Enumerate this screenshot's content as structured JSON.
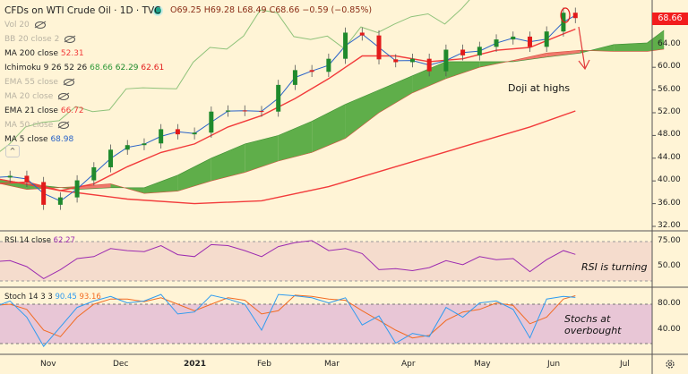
{
  "header": {
    "title": "CFDs on WTI Crude Oil · 1D · TVC",
    "ohlc": "O69.25 H69.28 L68.49 C68.66 −0.59 (−0.85%)"
  },
  "legend": [
    {
      "label": "Vol 20",
      "hidden": true,
      "value": ""
    },
    {
      "label": "BB 20 close 2",
      "hidden": true,
      "value": ""
    },
    {
      "label": "MA 200 close",
      "hidden": false,
      "value": "52.31",
      "color": "#f23b3b"
    },
    {
      "label": "Ichimoku 9 26 52 26",
      "hidden": false,
      "value": "68.66",
      "value2": "62.29",
      "value3": "62.61"
    },
    {
      "label": "EMA 55 close",
      "hidden": true,
      "value": ""
    },
    {
      "label": "MA 20 close",
      "hidden": true,
      "value": ""
    },
    {
      "label": "EMA 21 close",
      "hidden": false,
      "value": "66.72",
      "color": "#f23b3b"
    },
    {
      "label": "MA 50 close",
      "hidden": true,
      "value": ""
    },
    {
      "label": "MA 5 close",
      "hidden": false,
      "value": "68.98",
      "color": "#2962c8"
    }
  ],
  "price_tag": "68.66",
  "rsi": {
    "label": "RSI 14 close",
    "value": "62.27"
  },
  "stoch": {
    "label": "Stoch 14 3 3",
    "k_value": "90.45",
    "d_value": "93.16"
  },
  "annotations": {
    "doji": "Doji at highs",
    "rsi": "RSI is turning",
    "stoch_line1": "Stochs at",
    "stoch_line2": "overbought"
  },
  "colors": {
    "up": "#1f8a2c",
    "down": "#e21b1b",
    "cloud_bull": "#5fae4a",
    "cloud_bear": "#f0786c",
    "ema21": "#f23b3b",
    "ma200": "#f23b3b",
    "ma5": "#2962c8",
    "rsi": "#9c2bb0",
    "stoch_k": "#2e9bf0",
    "stoch_d": "#f26b22",
    "lagging": "#8fc27a"
  },
  "chart_data": [
    {
      "type": "candlestick",
      "title": "CFDs on WTI Crude Oil · 1D · TVC",
      "y_ticks": [
        "64.00",
        "60.00",
        "56.00",
        "52.00",
        "48.00",
        "44.00",
        "40.00",
        "36.00",
        "32.00"
      ],
      "ylim": [
        32,
        70
      ],
      "x_ticks": [
        "Nov",
        "Dec",
        "2021",
        "Feb",
        "Mar",
        "Apr",
        "May",
        "Jun",
        "Jul"
      ],
      "dates": [
        "2020-10-09",
        "2020-10-16",
        "2020-10-23",
        "2020-10-30",
        "2020-11-06",
        "2020-11-13",
        "2020-11-20",
        "2020-11-27",
        "2020-12-04",
        "2020-12-11",
        "2020-12-18",
        "2020-12-25",
        "2021-01-01",
        "2021-01-08",
        "2021-01-15",
        "2021-01-22",
        "2021-01-29",
        "2021-02-05",
        "2021-02-12",
        "2021-02-19",
        "2021-02-26",
        "2021-03-05",
        "2021-03-12",
        "2021-03-19",
        "2021-03-26",
        "2021-04-02",
        "2021-04-09",
        "2021-04-16",
        "2021-04-23",
        "2021-04-30",
        "2021-05-07",
        "2021-05-14",
        "2021-05-21",
        "2021-05-28",
        "2021-06-04",
        "2021-06-09"
      ],
      "close": [
        40.6,
        40.9,
        39.8,
        35.8,
        37.1,
        40.1,
        42.4,
        45.5,
        46.3,
        46.6,
        49.1,
        48.2,
        48.5,
        52.2,
        52.4,
        52.3,
        52.2,
        56.9,
        59.5,
        59.2,
        61.5,
        66.1,
        65.6,
        61.4,
        60.9,
        61.5,
        59.3,
        63.1,
        62.1,
        63.6,
        64.9,
        65.4,
        63.6,
        66.3,
        69.6,
        68.66
      ],
      "ema21": {
        "dates": [
          "2020-10-09",
          "2020-10-23",
          "2020-11-06",
          "2020-11-20",
          "2020-12-04",
          "2020-12-18",
          "2021-01-01",
          "2021-01-15",
          "2021-01-29",
          "2021-02-12",
          "2021-02-26",
          "2021-03-12",
          "2021-03-26",
          "2021-04-09",
          "2021-04-23",
          "2021-05-07",
          "2021-05-21",
          "2021-06-09"
        ],
        "values": [
          39.5,
          39.8,
          38.3,
          39.5,
          42.5,
          45,
          46.5,
          49.5,
          51.5,
          54.5,
          58,
          62,
          62,
          61,
          61.5,
          63,
          63.5,
          66.72
        ]
      },
      "ma200": {
        "dates": [
          "2020-10-09",
          "2020-11-06",
          "2020-12-04",
          "2021-01-01",
          "2021-01-29",
          "2021-02-26",
          "2021-03-26",
          "2021-04-23",
          "2021-05-21",
          "2021-06-09"
        ],
        "values": [
          40.5,
          38.3,
          36.8,
          36.0,
          36.5,
          39,
          42.5,
          46,
          49.5,
          52.31
        ]
      },
      "ichimoku_cloud": {
        "dates": [
          "2020-10-09",
          "2020-10-23",
          "2020-11-13",
          "2020-11-27",
          "2020-12-11",
          "2020-12-25",
          "2021-01-08",
          "2021-01-22",
          "2021-02-05",
          "2021-02-19",
          "2021-03-05",
          "2021-03-19",
          "2021-04-02",
          "2021-04-16",
          "2021-04-30",
          "2021-05-14",
          "2021-05-28",
          "2021-06-11",
          "2021-06-25",
          "2021-07-09",
          "2021-07-16"
        ],
        "span_a": [
          40.5,
          39.5,
          38.5,
          38.8,
          38.8,
          41,
          44,
          46.5,
          48,
          50.5,
          53.5,
          56,
          58.5,
          61,
          61,
          61,
          61.8,
          62.5,
          64,
          64.3,
          66.5
        ],
        "span_b": [
          39.8,
          38.5,
          39.0,
          39.5,
          37.8,
          38.2,
          40,
          41.5,
          43.5,
          45,
          47.5,
          52,
          55.5,
          58,
          60,
          61.2,
          62.5,
          63.0,
          62.8,
          62.8,
          63.2
        ]
      }
    },
    {
      "type": "line",
      "name": "RSI 14 close",
      "y_ticks": [
        "75.00",
        "50.00"
      ],
      "bands": [
        70,
        30
      ],
      "dates": [
        "2020-10-09",
        "2020-10-16",
        "2020-10-23",
        "2020-10-30",
        "2020-11-06",
        "2020-11-13",
        "2020-11-20",
        "2020-11-27",
        "2020-12-04",
        "2020-12-11",
        "2020-12-18",
        "2020-12-25",
        "2021-01-01",
        "2021-01-08",
        "2021-01-15",
        "2021-01-22",
        "2021-01-29",
        "2021-02-05",
        "2021-02-12",
        "2021-02-19",
        "2021-02-26",
        "2021-03-05",
        "2021-03-12",
        "2021-03-19",
        "2021-03-26",
        "2021-04-02",
        "2021-04-09",
        "2021-04-16",
        "2021-04-23",
        "2021-04-30",
        "2021-05-07",
        "2021-05-14",
        "2021-05-21",
        "2021-05-28",
        "2021-06-04",
        "2021-06-09"
      ],
      "values": [
        55,
        56,
        50,
        38,
        47,
        58,
        60,
        68,
        66,
        65,
        71,
        62,
        60,
        72,
        71,
        66,
        60,
        70,
        74,
        76,
        66,
        68,
        63,
        47,
        48,
        46,
        49,
        56,
        52,
        60,
        57,
        58,
        45,
        57,
        66,
        62.27
      ]
    },
    {
      "type": "line",
      "name": "Stoch 14 3 3",
      "y_ticks": [
        "80.00",
        "40.00"
      ],
      "bands": [
        80,
        20
      ],
      "dates": [
        "2020-10-09",
        "2020-10-16",
        "2020-10-23",
        "2020-10-30",
        "2020-11-06",
        "2020-11-13",
        "2020-11-20",
        "2020-11-27",
        "2020-12-04",
        "2020-12-11",
        "2020-12-18",
        "2020-12-25",
        "2021-01-01",
        "2021-01-08",
        "2021-01-15",
        "2021-01-22",
        "2021-01-29",
        "2021-02-05",
        "2021-02-12",
        "2021-02-19",
        "2021-02-26",
        "2021-03-05",
        "2021-03-12",
        "2021-03-19",
        "2021-03-26",
        "2021-04-02",
        "2021-04-09",
        "2021-04-16",
        "2021-04-23",
        "2021-04-30",
        "2021-05-07",
        "2021-05-14",
        "2021-05-21",
        "2021-05-28",
        "2021-06-04",
        "2021-06-09"
      ],
      "k": [
        75,
        85,
        60,
        15,
        45,
        75,
        85,
        92,
        82,
        85,
        95,
        65,
        68,
        94,
        88,
        80,
        40,
        95,
        93,
        90,
        82,
        90,
        48,
        62,
        20,
        35,
        30,
        75,
        60,
        82,
        85,
        72,
        28,
        88,
        92,
        90.45
      ],
      "d": [
        78,
        80,
        72,
        40,
        30,
        60,
        80,
        88,
        88,
        84,
        90,
        80,
        70,
        80,
        90,
        86,
        65,
        70,
        94,
        92,
        88,
        86,
        70,
        55,
        40,
        28,
        32,
        55,
        68,
        72,
        82,
        78,
        50,
        60,
        88,
        93.16
      ]
    }
  ]
}
